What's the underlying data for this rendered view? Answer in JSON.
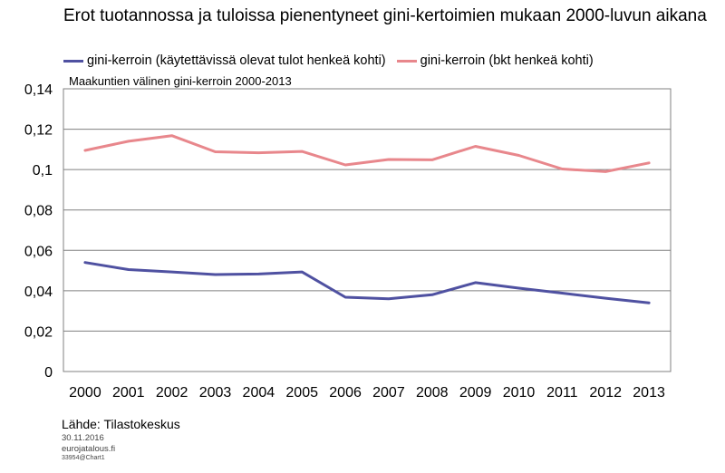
{
  "title": "Erot tuotannossa ja tuloissa pienentyneet gini-kertoimien mukaan 2000-luvun aikana",
  "subtitle": "Maakuntien välinen gini-kerroin 2000-2013",
  "source": "Lähde: Tilastokeskus",
  "date": "30.11.2016",
  "site": "eurojatalous.fi",
  "code": "33954@Chart1",
  "chart_data": {
    "type": "line",
    "title": "Erot tuotannossa ja tuloissa pienentyneet gini-kertoimien mukaan 2000-luvun aikana",
    "subtitle": "Maakuntien välinen gini-kerroin 2000-2013",
    "x": [
      "2000",
      "2001",
      "2002",
      "2003",
      "2004",
      "2005",
      "2006",
      "2007",
      "2008",
      "2009",
      "2010",
      "2011",
      "2012",
      "2013"
    ],
    "ylim": [
      0,
      0.14
    ],
    "yticks": [
      "0",
      "0,02",
      "0,04",
      "0,06",
      "0,08",
      "0,1",
      "0,12",
      "0,14"
    ],
    "ytick_values": [
      0,
      0.02,
      0.04,
      0.06,
      0.08,
      0.1,
      0.12,
      0.14
    ],
    "grid": "horizontal",
    "legend_position": "top",
    "series": [
      {
        "name": "gini-kerroin (käytettävissä olevat tulot henkeä kohti)",
        "color": "#4f51a1",
        "values": [
          0.054,
          0.0505,
          0.0493,
          0.048,
          0.0483,
          0.0493,
          0.0368,
          0.036,
          0.038,
          0.044,
          0.0413,
          0.0388,
          0.0363,
          0.034
        ]
      },
      {
        "name": "gini-kerroin (bkt henkeä kohti)",
        "color": "#e8878c",
        "values": [
          0.1095,
          0.114,
          0.1168,
          0.1088,
          0.1083,
          0.109,
          0.1023,
          0.105,
          0.1048,
          0.1115,
          0.107,
          0.1003,
          0.099,
          0.1033
        ]
      }
    ]
  }
}
